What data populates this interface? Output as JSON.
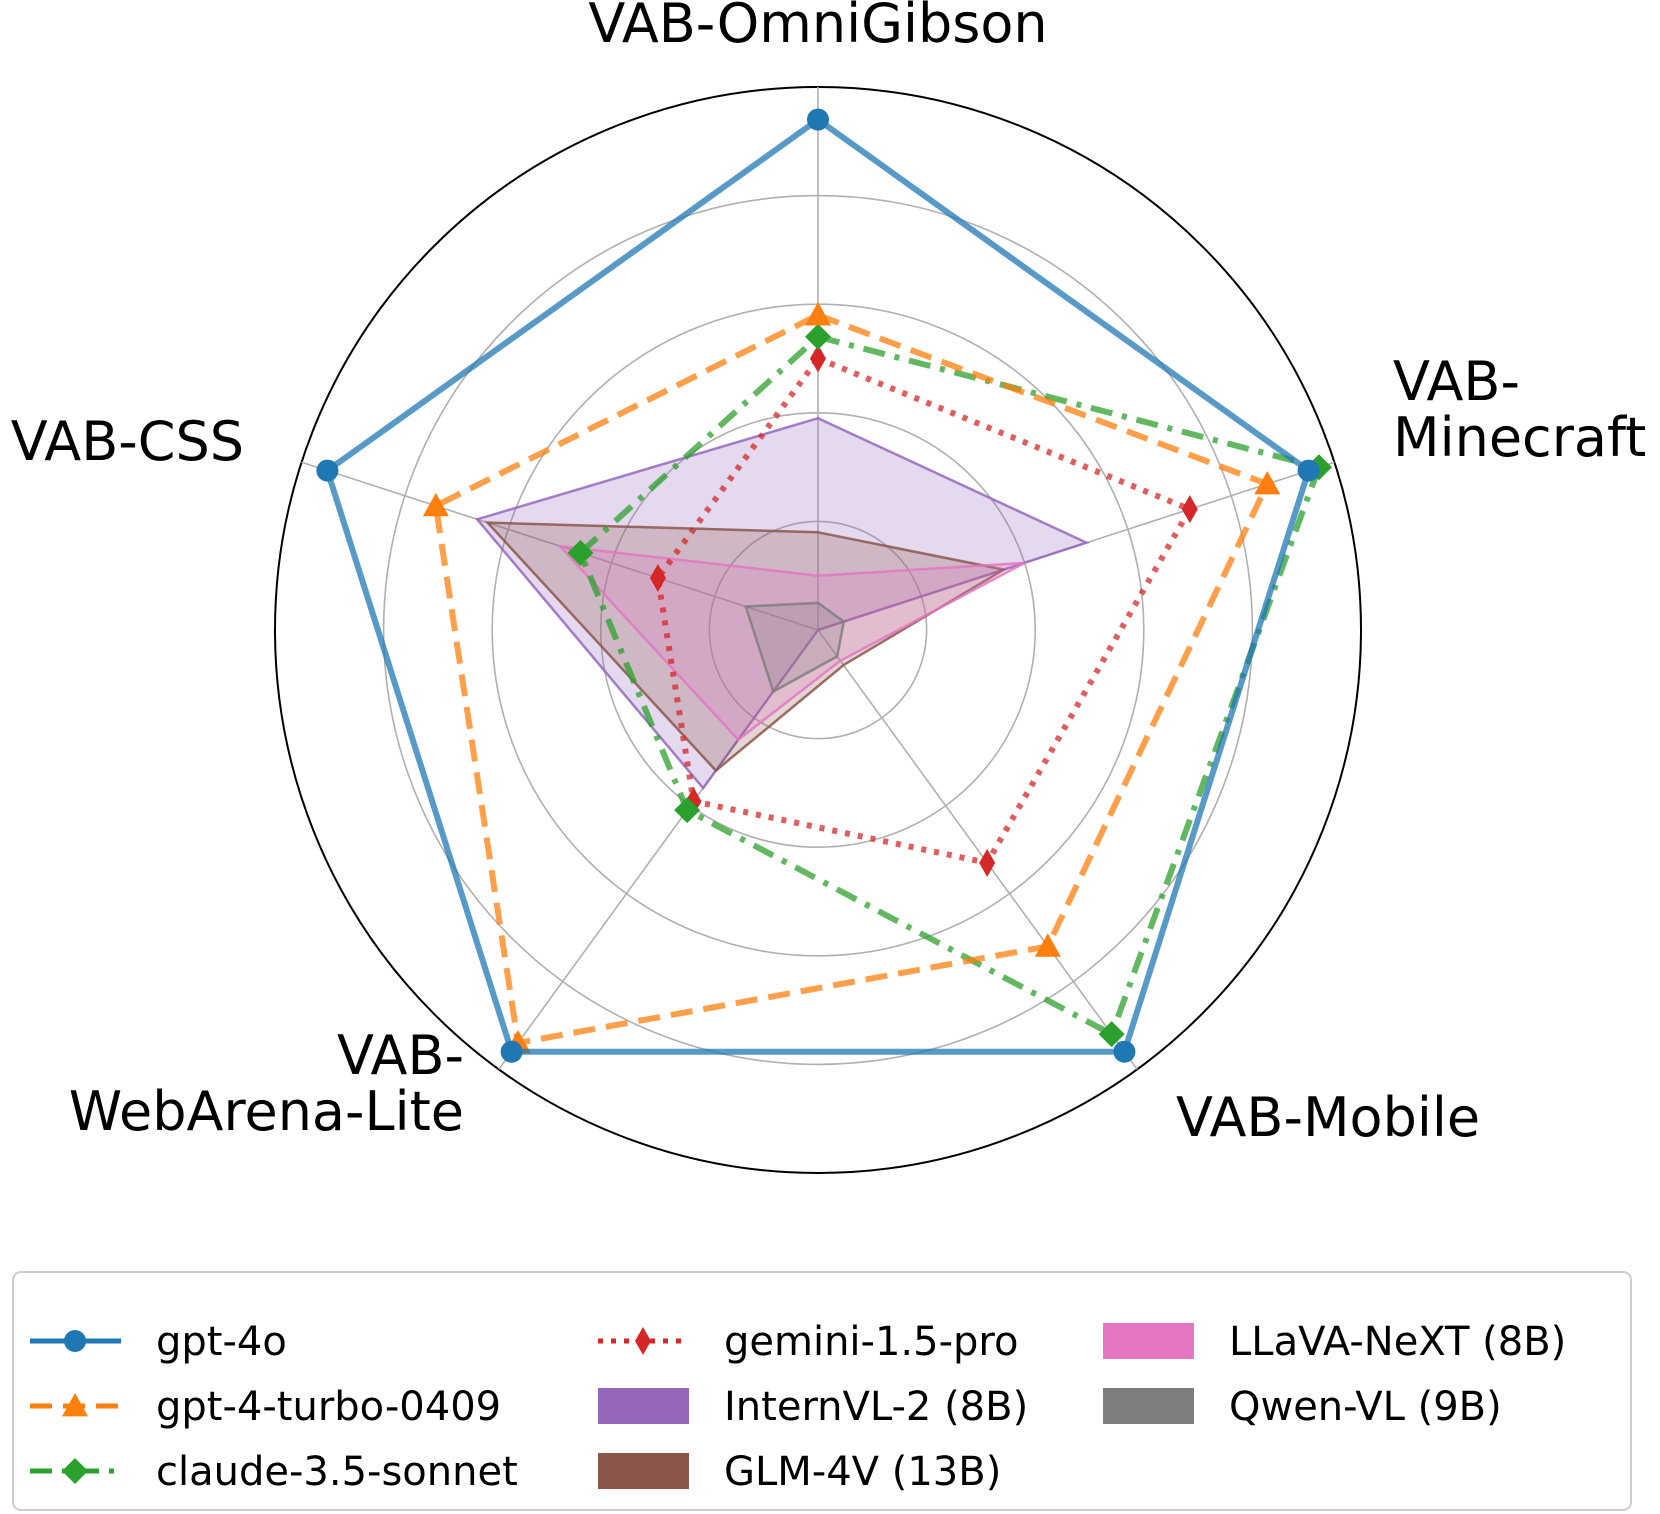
{
  "chart_data": {
    "type": "radar",
    "axes": [
      {
        "lines": [
          "VAB-OmniGibson"
        ]
      },
      {
        "lines": [
          "VAB-",
          "Minecraft"
        ]
      },
      {
        "lines": [
          "VAB-Mobile"
        ]
      },
      {
        "lines": [
          "VAB-",
          "WebArena-Lite"
        ]
      },
      {
        "lines": [
          "VAB-CSS"
        ]
      }
    ],
    "rlim": [
      0,
      1
    ],
    "gridlines": [
      0.2,
      0.4,
      0.6,
      0.8,
      1.0
    ],
    "grid": true,
    "legend_position": "bottom",
    "series": [
      {
        "name": "gpt-4o",
        "kind": "line",
        "color": "#1f77b4",
        "dash": "solid",
        "marker": "circle",
        "values": [
          0.94,
          0.95,
          0.96,
          0.96,
          0.95
        ]
      },
      {
        "name": "gpt-4-turbo-0409",
        "kind": "line",
        "color": "#ff7f0e",
        "dash": "dashed",
        "marker": "triangle",
        "values": [
          0.58,
          0.87,
          0.72,
          0.94,
          0.74
        ]
      },
      {
        "name": "claude-3.5-sonnet",
        "kind": "line",
        "color": "#2ca02c",
        "dash": "dashdot",
        "marker": "diamond",
        "values": [
          0.54,
          0.97,
          0.92,
          0.41,
          0.46
        ]
      },
      {
        "name": "gemini-1.5-pro",
        "kind": "line",
        "color": "#d62728",
        "dash": "dotted",
        "marker": "thin_diamond",
        "values": [
          0.5,
          0.72,
          0.53,
          0.39,
          0.31
        ]
      },
      {
        "name": "InternVL-2 (8B)",
        "kind": "fill",
        "color": "#9467bd",
        "values": [
          0.39,
          0.52,
          0.0,
          0.36,
          0.66
        ]
      },
      {
        "name": "GLM-4V (13B)",
        "kind": "fill",
        "color": "#8c564b",
        "values": [
          0.18,
          0.36,
          0.08,
          0.32,
          0.64
        ]
      },
      {
        "name": "LLaVA-NeXT (8B)",
        "kind": "fill",
        "color": "#e377c2",
        "values": [
          0.1,
          0.4,
          0.07,
          0.25,
          0.5
        ]
      },
      {
        "name": "Qwen-VL (9B)",
        "kind": "fill",
        "color": "#7f7f7f",
        "values": [
          0.05,
          0.05,
          0.06,
          0.14,
          0.14
        ]
      }
    ]
  }
}
